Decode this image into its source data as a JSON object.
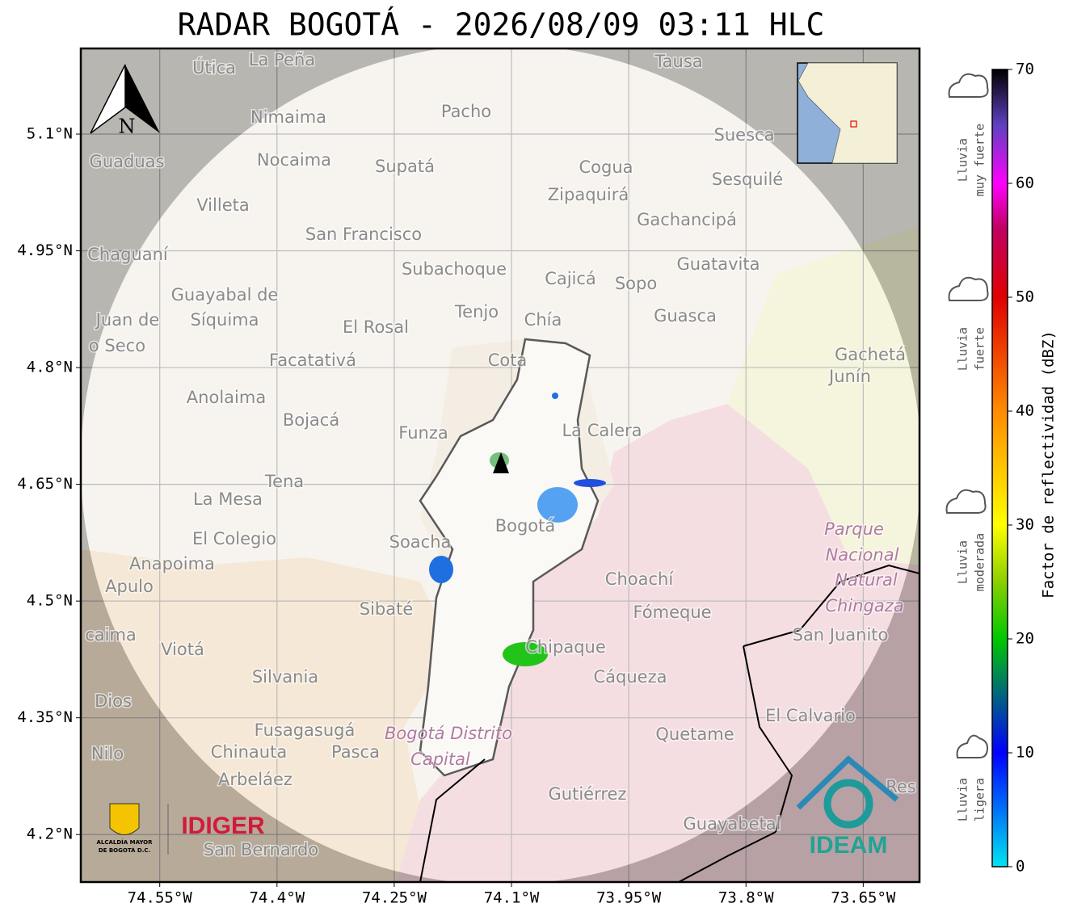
{
  "title": "RADAR BOGOTÁ - 2026/08/09 03:11 HLC",
  "map": {
    "type": "map",
    "xlim": [
      -74.651,
      -73.578
    ],
    "ylim": [
      4.139,
      5.21
    ],
    "xticks": [
      {
        "value": -74.55,
        "label": "74.55°W"
      },
      {
        "value": -74.4,
        "label": "74.4°W"
      },
      {
        "value": -74.25,
        "label": "74.25°W"
      },
      {
        "value": -74.1,
        "label": "74.1°W"
      },
      {
        "value": -73.95,
        "label": "73.95°W"
      },
      {
        "value": -73.8,
        "label": "73.8°W"
      },
      {
        "value": -73.65,
        "label": "73.65°W"
      }
    ],
    "yticks": [
      {
        "value": 5.1,
        "label": "5.1°N"
      },
      {
        "value": 4.95,
        "label": "4.95°N"
      },
      {
        "value": 4.8,
        "label": "4.8°N"
      },
      {
        "value": 4.65,
        "label": "4.65°N"
      },
      {
        "value": 4.5,
        "label": "4.5°N"
      },
      {
        "value": 4.35,
        "label": "4.35°N"
      },
      {
        "value": 4.2,
        "label": "4.2°N"
      }
    ],
    "grid": true,
    "north_label": "N",
    "places": [
      "La Peña",
      "Útica",
      "Tausa",
      "Pacho",
      "Nimaima",
      "Guaduas",
      "Nocaima",
      "Supatá",
      "Cogua",
      "Suesca",
      "Sesquilé",
      "Villeta",
      "Zipaquirá",
      "Gachancipá",
      "San Francisco",
      "Chaguaní",
      "Guatavita",
      "Subachoque",
      "Cajicá",
      "Sopo",
      "Guayabal de",
      "Síquima",
      "Tenjo",
      "Chía",
      "Guasca",
      "Juan de",
      "o Seco",
      "El Rosal",
      "Facatativá",
      "Cota",
      "Gachetá",
      "Junín",
      "Anolaima",
      "Bojacá",
      "Funza",
      "La Calera",
      "Tena",
      "La Mesa",
      "El Colegio",
      "Soacha",
      "Bogotá",
      "Parque",
      "Nacional",
      "Natural",
      "Chingaza",
      "Anapoima",
      "Apulo",
      "Choachí",
      "Sibaté",
      "Fómeque",
      "San Juanito",
      "caima",
      "Viotá",
      "Chipaque",
      "Cáqueza",
      "Silvania",
      "Dios",
      "El Calvario",
      "Fusagasugá",
      "Bogotá Distrito",
      "Capital",
      "Quetame",
      "Nilo",
      "Chinauta",
      "Pasca",
      "Arbeláez",
      "Gutiérrez",
      "Res",
      "Guayabetal",
      "San Bernardo"
    ]
  },
  "colorbar": {
    "label": "Factor de reflectividad (dBZ)",
    "lim": [
      0,
      70
    ],
    "ticks": [
      0,
      10,
      20,
      30,
      40,
      50,
      60,
      70
    ],
    "categories": [
      [
        "Lluvia",
        "muy fuerte"
      ],
      [
        "Lluvia",
        "fuerte"
      ],
      [
        "Lluvia",
        "moderada"
      ],
      [
        "Lluvia",
        "ligera"
      ]
    ]
  },
  "logos": {
    "alcaldia": [
      "ALCALDÍA MAYOR",
      "DE BOGOTÁ D.C."
    ],
    "idiger": "IDIGER",
    "ideam": "IDEAM"
  }
}
